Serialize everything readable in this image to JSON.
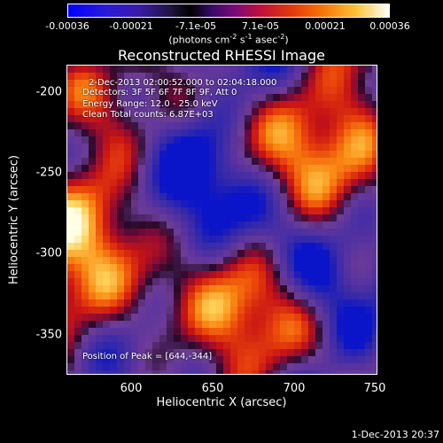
{
  "colorbar": {
    "ticks": [
      "-0.00036",
      "-0.00021",
      "-7.1e-05",
      "7.1e-05",
      "0.00021",
      "0.00036"
    ],
    "unit_main": "(photons cm",
    "unit_exp1": "-2",
    "unit_mid1": " s",
    "unit_exp2": "-1",
    "unit_mid2": " asec",
    "unit_exp3": "-2",
    "unit_end": ")"
  },
  "title": "Reconstructed RHESSI Image",
  "info": {
    "time": "2-Dec-2013 02:00:52.000 to 02:04:18.000",
    "detectors": "Detectors: 3F 5F 6F 7F 8F 9F, Att 0",
    "energy": "Energy Range: 12.0 - 25.0 keV",
    "clean": "Clean     Total counts: 6.87E+03",
    "peak": "Position of Peak = [644,-344]"
  },
  "axes": {
    "xlabel": "Heliocentric X (arcsec)",
    "ylabel": "Heliocentric Y (arcsec)",
    "xticks": [
      "600",
      "650",
      "700",
      "750"
    ],
    "yticks": [
      "-200",
      "-250",
      "-300",
      "-350"
    ]
  },
  "footer": "1-Dec-2013 20:37"
}
